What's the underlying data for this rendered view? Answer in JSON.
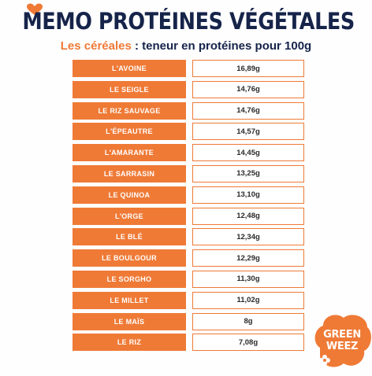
{
  "header": {
    "title": "MEMO PROTÉINES VÉGÉTALES",
    "subtitle_accent": "Les céréales",
    "subtitle_rest": " : teneur en protéines pour 100g"
  },
  "rows": [
    {
      "name": "L'avoine",
      "value": "16,89g"
    },
    {
      "name": "Le seigle",
      "value": "14,76g"
    },
    {
      "name": "Le riz sauvage",
      "value": "14,76g"
    },
    {
      "name": "L'épeautre",
      "value": "14,57g"
    },
    {
      "name": "L'amarante",
      "value": "14,45g"
    },
    {
      "name": "Le sarrasin",
      "value": "13,25g"
    },
    {
      "name": "Le quinoa",
      "value": "13,10g"
    },
    {
      "name": "L'orge",
      "value": "12,48g"
    },
    {
      "name": "Le blé",
      "value": "12,34g"
    },
    {
      "name": "Le boulgour",
      "value": "12,29g"
    },
    {
      "name": "Le sorgho",
      "value": "11,30g"
    },
    {
      "name": "Le millet",
      "value": "11,02g"
    },
    {
      "name": "Le maïs",
      "value": "8g"
    },
    {
      "name": "Le riz",
      "value": "7,08g"
    }
  ],
  "logo": {
    "line1": "GREEN",
    "line2": "WEEZ"
  },
  "colors": {
    "accent": "#ef7a36",
    "navy": "#16244a",
    "background": "#fefefe"
  },
  "icons": {
    "decoration": "heart-icon",
    "logo_leaf": "flower-icon"
  }
}
